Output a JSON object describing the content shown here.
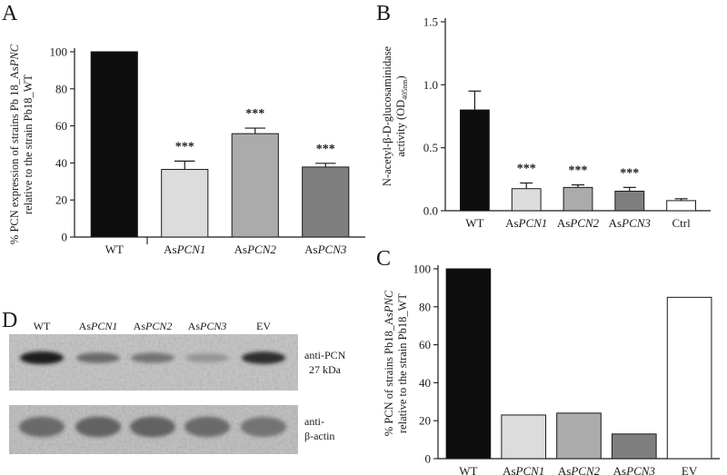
{
  "panel_letters": {
    "a": "A",
    "b": "B",
    "c": "C",
    "d": "D"
  },
  "chart_data": [
    {
      "panel": "A",
      "type": "bar",
      "categories": [
        "WT",
        "AsPCN1",
        "AsPCN2",
        "AsPCN3"
      ],
      "category_labels": [
        {
          "plain": "WT",
          "italic": ""
        },
        {
          "plain": "As",
          "italic": "PCN1"
        },
        {
          "plain": "As",
          "italic": "PCN2"
        },
        {
          "plain": "As",
          "italic": "PCN3"
        }
      ],
      "values": [
        100,
        36.5,
        55.8,
        37.8
      ],
      "errors": [
        0,
        4.5,
        3,
        2
      ],
      "significance": [
        "",
        "***",
        "***",
        "***"
      ],
      "colors": [
        "#0d0d0d",
        "#dcdcdc",
        "#ababab",
        "#7f7f7f"
      ],
      "ylabel_line1_parts": [
        {
          "plain": "% PCN expression of strains Pb 18_As",
          "italic": ""
        },
        {
          "plain": "",
          "italic": "PNC"
        }
      ],
      "ylabel_line2": "relative to the strain Pb18_WT",
      "ylim": [
        0,
        100
      ],
      "yticks": [
        "0",
        "20",
        "40",
        "60",
        "80",
        "100"
      ]
    },
    {
      "panel": "B",
      "type": "bar",
      "categories": [
        "WT",
        "AsPCN1",
        "AsPCN2",
        "AsPCN3",
        "Ctrl"
      ],
      "category_labels": [
        {
          "plain": "WT",
          "italic": ""
        },
        {
          "plain": "As",
          "italic": "PCN1"
        },
        {
          "plain": "As",
          "italic": "PCN2"
        },
        {
          "plain": "As",
          "italic": "PCN3"
        },
        {
          "plain": "Ctrl",
          "italic": ""
        }
      ],
      "values": [
        0.8,
        0.175,
        0.185,
        0.155,
        0.08
      ],
      "errors": [
        0.15,
        0.045,
        0.02,
        0.03,
        0.015
      ],
      "significance": [
        "",
        "***",
        "***",
        "***",
        ""
      ],
      "colors": [
        "#0d0d0d",
        "#dcdcdc",
        "#ababab",
        "#7f7f7f",
        "#ffffff"
      ],
      "ylabel_line1": "N-acetyl-β-D-glucosaminidase",
      "ylabel_line2_prefix": "activity (OD",
      "ylabel_line2_sub": "405nm",
      "ylabel_line2_suffix": ")",
      "ylim": [
        0,
        1.5
      ],
      "yticks": [
        "0.0",
        "0.5",
        "1.0",
        "1.5"
      ]
    },
    {
      "panel": "C",
      "type": "bar",
      "categories": [
        "WT",
        "AsPCN1",
        "AsPCN2",
        "AsPCN3",
        "EV"
      ],
      "category_labels": [
        {
          "plain": "WT",
          "italic": ""
        },
        {
          "plain": "As",
          "italic": "PCN1"
        },
        {
          "plain": "As",
          "italic": "PCN2"
        },
        {
          "plain": "As",
          "italic": "PCN3"
        },
        {
          "plain": "EV",
          "italic": ""
        }
      ],
      "values": [
        100,
        23,
        24,
        13,
        85
      ],
      "colors": [
        "#0d0d0d",
        "#dcdcdc",
        "#ababab",
        "#7f7f7f",
        "#ffffff"
      ],
      "ylabel_line1_parts": [
        {
          "plain": "% PCN of strains Pb18_As",
          "italic": ""
        },
        {
          "plain": "",
          "italic": "PNC"
        }
      ],
      "ylabel_line2": "relative to the strain Pb18_WT",
      "ylim": [
        0,
        100
      ],
      "yticks": [
        "0",
        "20",
        "40",
        "60",
        "80",
        "100"
      ]
    }
  ],
  "western_blot": {
    "lanes": [
      {
        "plain": "WT",
        "italic": ""
      },
      {
        "plain": "As",
        "italic": "PCN1"
      },
      {
        "plain": "As",
        "italic": "PCN2"
      },
      {
        "plain": "As",
        "italic": "PCN3"
      },
      {
        "plain": "EV",
        "italic": ""
      }
    ],
    "pcn_band_intensity": [
      1.0,
      0.55,
      0.5,
      0.3,
      0.9
    ],
    "actin_band_intensity": [
      0.55,
      0.6,
      0.6,
      0.55,
      0.5
    ],
    "top_label_line1": "anti-PCN",
    "top_label_line2": "27 kDa",
    "bottom_label_line1": "anti-",
    "bottom_label_line2": "β-actin"
  }
}
